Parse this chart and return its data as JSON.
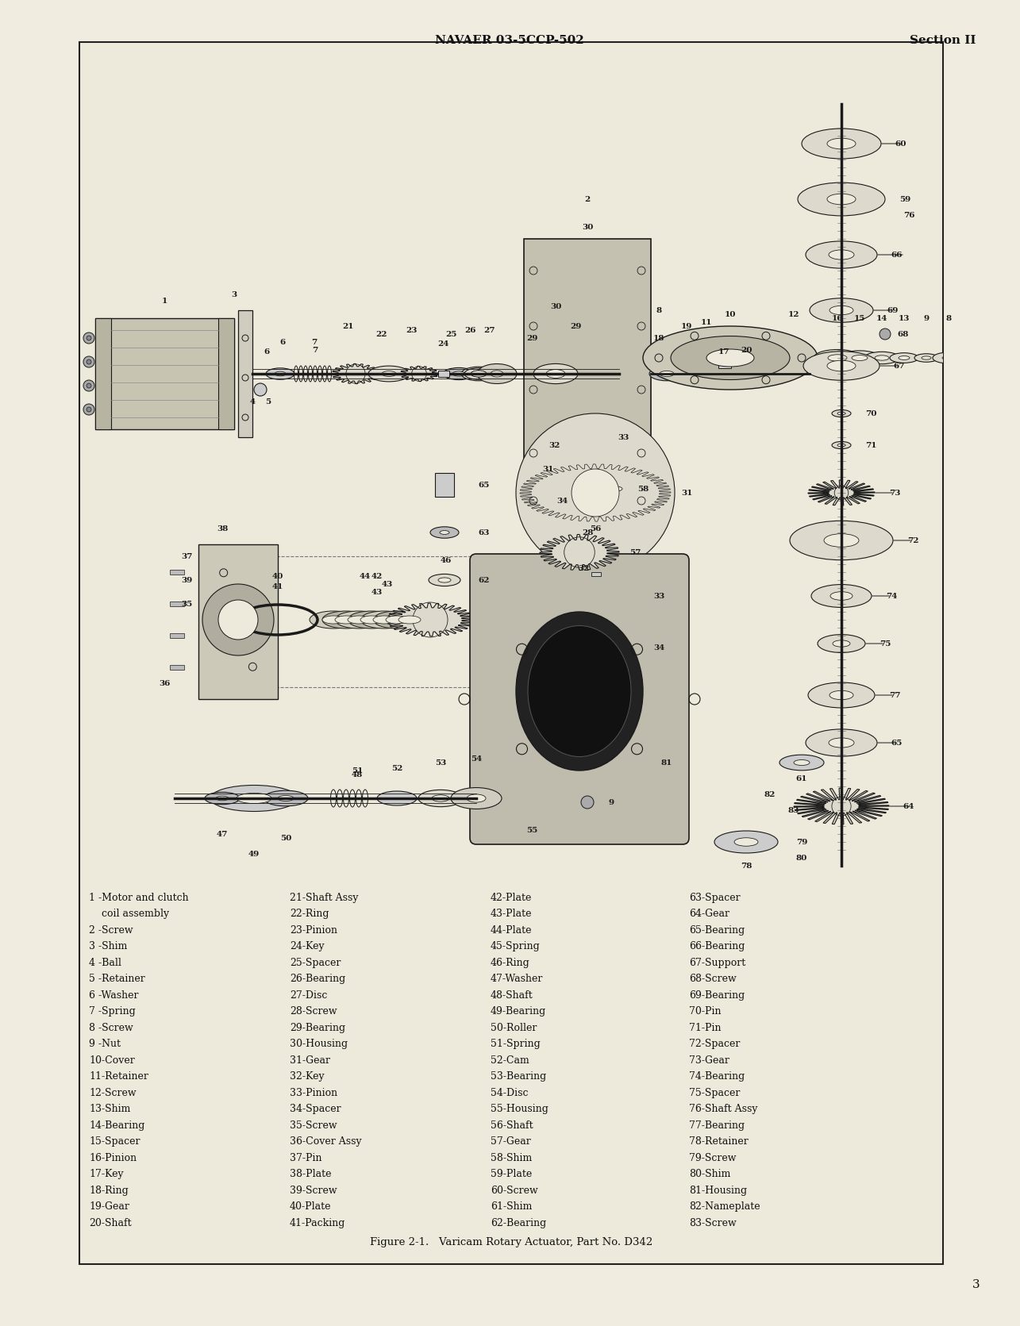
{
  "page_bg_color": "#f0ece0",
  "inner_bg_color": "#ede9db",
  "header_center": "NAVAER 03-5CCP-502",
  "header_right": "Section II",
  "page_num": "3",
  "footer": "Figure 2-1.   Varicam Rotary Actuator, Part No. D342",
  "text_color": "#111111",
  "border_color": "#222222",
  "parts_col1": [
    "1 -Motor and clutch",
    "    coil assembly",
    "2 -Screw",
    "3 -Shim",
    "4 -Ball",
    "5 -Retainer",
    "6 -Washer",
    "7 -Spring",
    "8 -Screw",
    "9 -Nut",
    "10-Cover",
    "11-Retainer",
    "12-Screw",
    "13-Shim",
    "14-Bearing",
    "15-Spacer",
    "16-Pinion",
    "17-Key",
    "18-Ring",
    "19-Gear",
    "20-Shaft"
  ],
  "parts_col2": [
    "21-Shaft Assy",
    "22-Ring",
    "23-Pinion",
    "24-Key",
    "25-Spacer",
    "26-Bearing",
    "27-Disc",
    "28-Screw",
    "29-Bearing",
    "30-Housing",
    "31-Gear",
    "32-Key",
    "33-Pinion",
    "34-Spacer",
    "35-Screw",
    "36-Cover Assy",
    "37-Pin",
    "38-Plate",
    "39-Screw",
    "40-Plate",
    "41-Packing"
  ],
  "parts_col3": [
    "42-Plate",
    "43-Plate",
    "44-Plate",
    "45-Spring",
    "46-Ring",
    "47-Washer",
    "48-Shaft",
    "49-Bearing",
    "50-Roller",
    "51-Spring",
    "52-Cam",
    "53-Bearing",
    "54-Disc",
    "55-Housing",
    "56-Shaft",
    "57-Gear",
    "58-Shim",
    "59-Plate",
    "60-Screw",
    "61-Shim",
    "62-Bearing"
  ],
  "parts_col4": [
    "63-Spacer",
    "64-Gear",
    "65-Bearing",
    "66-Bearing",
    "67-Support",
    "68-Screw",
    "69-Bearing",
    "70-Pin",
    "71-Pin",
    "72-Spacer",
    "73-Gear",
    "74-Bearing",
    "75-Spacer",
    "76-Shaft Assy",
    "77-Bearing",
    "78-Retainer",
    "79-Screw",
    "80-Shim",
    "81-Housing",
    "82-Nameplate",
    "83-Screw"
  ]
}
